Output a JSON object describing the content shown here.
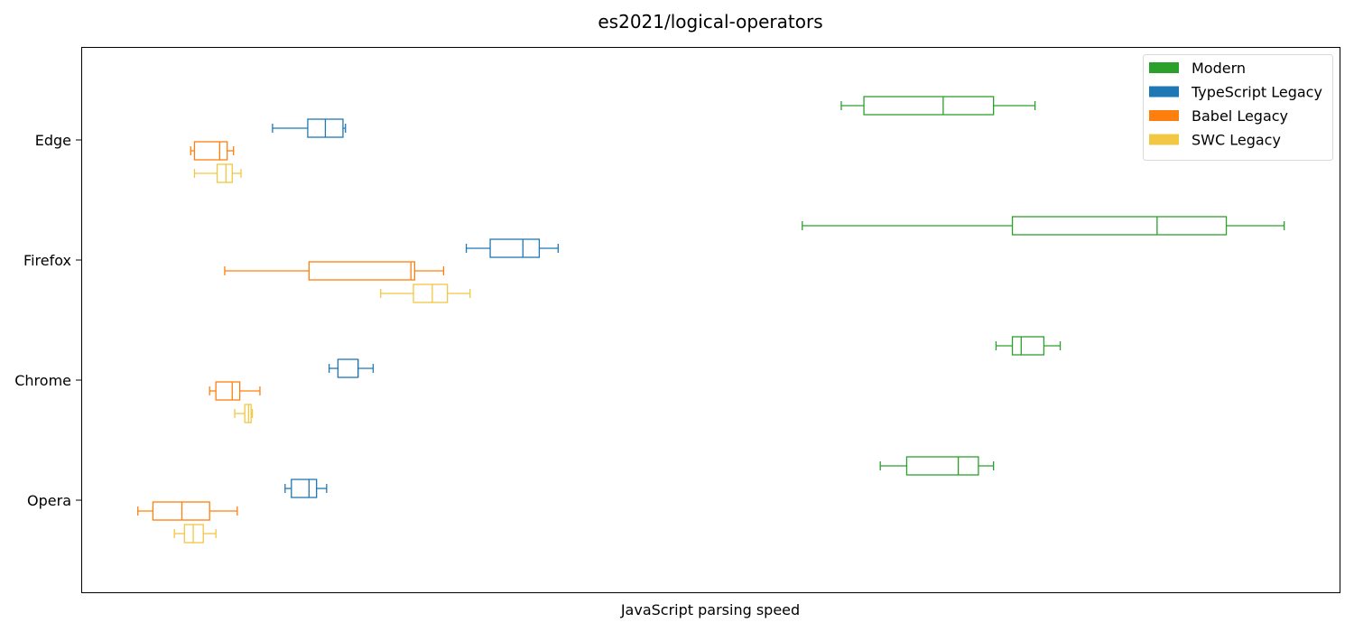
{
  "chart_data": {
    "type": "box",
    "orientation": "horizontal",
    "title": "es2021/logical-operators",
    "xlabel": "JavaScript parsing speed",
    "ylabel": "",
    "x_ticks_shown": false,
    "xlim": [
      0,
      1000
    ],
    "categories": [
      "Edge",
      "Firefox",
      "Chrome",
      "Opera"
    ],
    "legend": {
      "position": "top-right"
    },
    "series": [
      {
        "name": "Modern",
        "color": "#2ca02c",
        "boxes": [
          {
            "category": "Edge",
            "whisker_low": 604,
            "q1": 622,
            "median": 685,
            "q3": 725,
            "whisker_high": 758
          },
          {
            "category": "Firefox",
            "whisker_low": 573,
            "q1": 740,
            "median": 855,
            "q3": 910,
            "whisker_high": 956
          },
          {
            "category": "Chrome",
            "whisker_low": 727,
            "q1": 740,
            "median": 747,
            "q3": 765,
            "whisker_high": 778
          },
          {
            "category": "Opera",
            "whisker_low": 635,
            "q1": 656,
            "median": 697,
            "q3": 713,
            "whisker_high": 725
          }
        ]
      },
      {
        "name": "TypeScript Legacy",
        "color": "#1f77b4",
        "boxes": [
          {
            "category": "Edge",
            "whisker_low": 152,
            "q1": 180,
            "median": 194,
            "q3": 208,
            "whisker_high": 210
          },
          {
            "category": "Firefox",
            "whisker_low": 306,
            "q1": 325,
            "median": 351,
            "q3": 364,
            "whisker_high": 379
          },
          {
            "category": "Chrome",
            "whisker_low": 197,
            "q1": 204,
            "median": 220,
            "q3": 220,
            "whisker_high": 232
          },
          {
            "category": "Opera",
            "whisker_low": 162,
            "q1": 167,
            "median": 181,
            "q3": 187,
            "whisker_high": 195
          }
        ]
      },
      {
        "name": "Babel Legacy",
        "color": "#ff7f0e",
        "boxes": [
          {
            "category": "Edge",
            "whisker_low": 87,
            "q1": 90,
            "median": 110,
            "q3": 116,
            "whisker_high": 121
          },
          {
            "category": "Firefox",
            "whisker_low": 114,
            "q1": 181,
            "median": 262,
            "q3": 265,
            "whisker_high": 288
          },
          {
            "category": "Chrome",
            "whisker_low": 102,
            "q1": 107,
            "median": 120,
            "q3": 126,
            "whisker_high": 142
          },
          {
            "category": "Opera",
            "whisker_low": 45,
            "q1": 57,
            "median": 80,
            "q3": 102,
            "whisker_high": 124
          }
        ]
      },
      {
        "name": "SWC Legacy",
        "color": "#f2c744",
        "boxes": [
          {
            "category": "Edge",
            "whisker_low": 90,
            "q1": 108,
            "median": 115,
            "q3": 120,
            "whisker_high": 127
          },
          {
            "category": "Firefox",
            "whisker_low": 238,
            "q1": 264,
            "median": 279,
            "q3": 291,
            "whisker_high": 309
          },
          {
            "category": "Chrome",
            "whisker_low": 122,
            "q1": 130,
            "median": 133,
            "q3": 135,
            "whisker_high": 136
          },
          {
            "category": "Opera",
            "whisker_low": 74,
            "q1": 82,
            "median": 89,
            "q3": 97,
            "whisker_high": 107
          }
        ]
      }
    ]
  }
}
